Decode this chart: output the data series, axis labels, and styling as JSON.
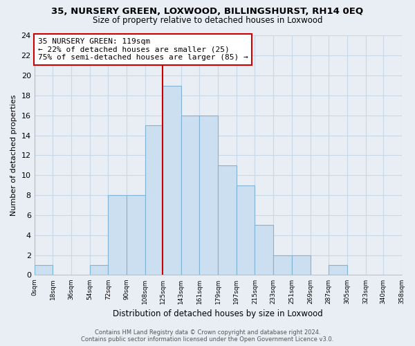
{
  "title": "35, NURSERY GREEN, LOXWOOD, BILLINGSHURST, RH14 0EQ",
  "subtitle": "Size of property relative to detached houses in Loxwood",
  "xlabel": "Distribution of detached houses by size in Loxwood",
  "ylabel": "Number of detached properties",
  "bin_edges": [
    0,
    18,
    36,
    54,
    72,
    90,
    108,
    125,
    143,
    161,
    179,
    197,
    215,
    233,
    251,
    269,
    287,
    305,
    323,
    340,
    358
  ],
  "bin_labels": [
    "0sqm",
    "18sqm",
    "36sqm",
    "54sqm",
    "72sqm",
    "90sqm",
    "108sqm",
    "125sqm",
    "143sqm",
    "161sqm",
    "179sqm",
    "197sqm",
    "215sqm",
    "233sqm",
    "251sqm",
    "269sqm",
    "287sqm",
    "305sqm",
    "323sqm",
    "340sqm",
    "358sqm"
  ],
  "counts": [
    1,
    0,
    0,
    1,
    8,
    8,
    15,
    19,
    16,
    16,
    11,
    9,
    5,
    2,
    2,
    0,
    1,
    0,
    0,
    0
  ],
  "bar_color": "#ccdff0",
  "bar_edge_color": "#7fb3d3",
  "property_line_x": 125,
  "vline_color": "#cc0000",
  "annotation_line1": "35 NURSERY GREEN: 119sqm",
  "annotation_line2": "← 22% of detached houses are smaller (25)",
  "annotation_line3": "75% of semi-detached houses are larger (85) →",
  "annotation_box_color": "#ffffff",
  "annotation_box_edge": "#cc0000",
  "ylim": [
    0,
    24
  ],
  "yticks": [
    0,
    2,
    4,
    6,
    8,
    10,
    12,
    14,
    16,
    18,
    20,
    22,
    24
  ],
  "background_color": "#e8eef4",
  "grid_color": "#c8d8e8",
  "footer_text": "Contains HM Land Registry data © Crown copyright and database right 2024.\nContains public sector information licensed under the Open Government Licence v3.0."
}
